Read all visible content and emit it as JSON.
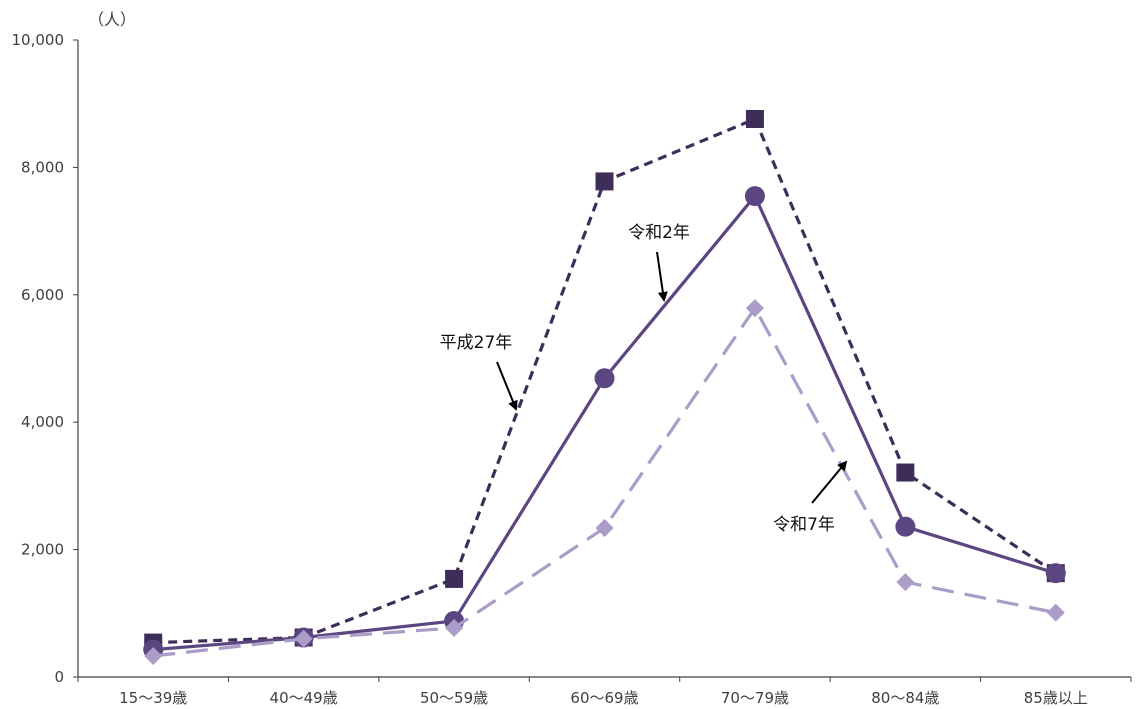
{
  "chart_data": {
    "type": "line",
    "categories": [
      "15～39歳",
      "40～49歳",
      "50～59歳",
      "60～69歳",
      "70～79歳",
      "80～84歳",
      "85歳以上"
    ],
    "series": [
      {
        "name": "平成27年",
        "values": [
          540,
          620,
          1540,
          7780,
          8760,
          3210,
          1630
        ],
        "color": "#3f2d59",
        "marker": "square",
        "line_style": "short-dash"
      },
      {
        "name": "令和2年",
        "values": [
          430,
          620,
          880,
          4690,
          7550,
          2360,
          1630
        ],
        "color": "#5c4682",
        "marker": "circle",
        "line_style": "solid"
      },
      {
        "name": "令和7年",
        "values": [
          330,
          600,
          770,
          2340,
          5790,
          1490,
          1010
        ],
        "color": "#ab9cc8",
        "marker": "diamond",
        "line_style": "long-dash"
      }
    ],
    "yunit": "（人）",
    "ylim": [
      0,
      10000
    ],
    "yticks": [
      0,
      2000,
      4000,
      6000,
      8000,
      10000
    ],
    "ytick_labels": [
      "0",
      "2,000",
      "4,000",
      "6,000",
      "8,000",
      "10,000"
    ],
    "grid": false,
    "legend": "none",
    "annotations": [
      {
        "text": "平成27年",
        "series": 0
      },
      {
        "text": "令和2年",
        "series": 1
      },
      {
        "text": "令和7年",
        "series": 2
      }
    ]
  }
}
